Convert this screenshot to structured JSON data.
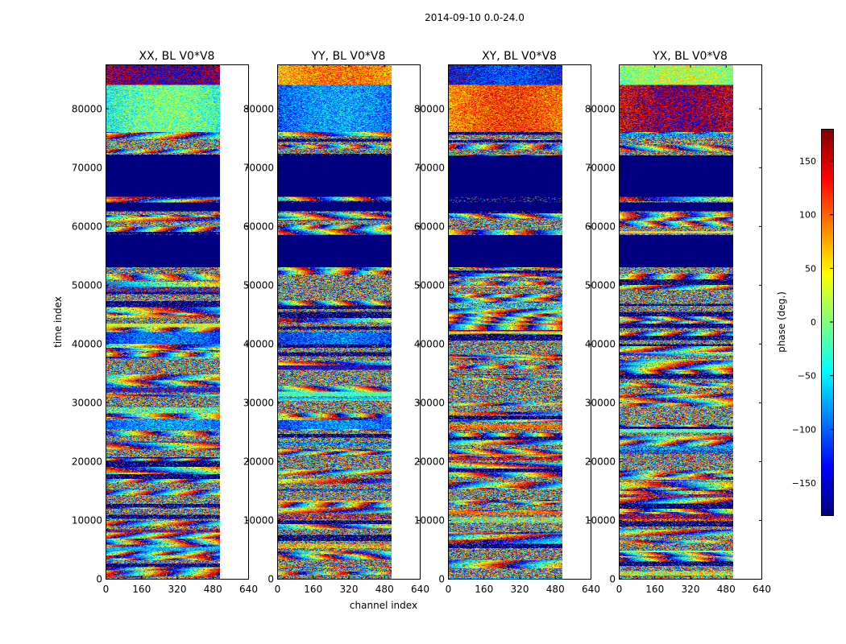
{
  "figure": {
    "suptitle": "2014-09-10 0.0-24.0"
  },
  "chart_data": {
    "type": "heatmap",
    "shared": {
      "xlabel": "channel index",
      "ylabel": "time index",
      "xlim": [
        0,
        640
      ],
      "ylim": [
        0,
        87500
      ],
      "xticks": [
        0,
        160,
        320,
        480,
        640
      ],
      "yticks": [
        0,
        10000,
        20000,
        30000,
        40000,
        50000,
        60000,
        70000,
        80000
      ],
      "data_channel_extent": [
        0,
        512
      ],
      "masked_time_bands": [
        [
          53000,
          58500
        ],
        [
          65000,
          72000
        ],
        [
          62500,
          64000
        ]
      ]
    },
    "panels": [
      {
        "name": "XX",
        "title": "XX, BL V0*V8",
        "seed": 11,
        "bias": [
          [
            84000,
            87500,
            160
          ],
          [
            76000,
            84000,
            -40
          ],
          [
            40000,
            42000,
            -130
          ],
          [
            25500,
            27000,
            -110
          ]
        ]
      },
      {
        "name": "YY",
        "title": "YY, BL V0*V8",
        "seed": 23,
        "bias": [
          [
            84000,
            87500,
            60
          ],
          [
            76000,
            84000,
            -110
          ],
          [
            40000,
            42000,
            -130
          ],
          [
            25500,
            27000,
            -120
          ]
        ]
      },
      {
        "name": "XY",
        "title": "XY, BL V0*V8",
        "seed": 37,
        "bias": [
          [
            84000,
            87500,
            -150
          ],
          [
            76000,
            84000,
            80
          ]
        ]
      },
      {
        "name": "YX",
        "title": "YX, BL V0*V8",
        "seed": 41,
        "bias": [
          [
            84000,
            87500,
            -10
          ],
          [
            76000,
            84000,
            140
          ]
        ]
      }
    ],
    "colorbar": {
      "label": "phase (deg.)",
      "range": [
        -180,
        180
      ],
      "ticks": [
        -150,
        -100,
        -50,
        0,
        50,
        100,
        150
      ],
      "tick_labels": [
        "−150",
        "−100",
        "−50",
        "0",
        "50",
        "100",
        "150"
      ],
      "colormap": "jet"
    }
  }
}
